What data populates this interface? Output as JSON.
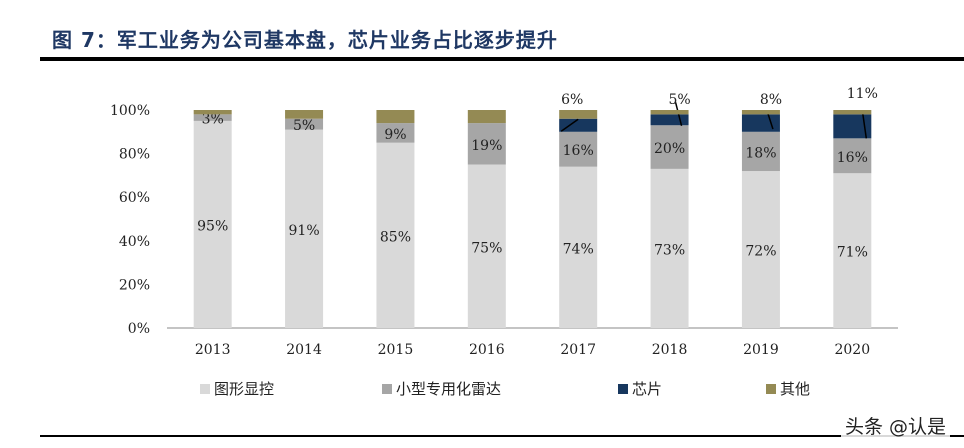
{
  "title": "图 7：军工业务为公司基本盘，芯片业务占比逐步提升",
  "watermark": "头条 @认是",
  "chart_data": {
    "type": "bar",
    "stacked": true,
    "categories": [
      "2013",
      "2014",
      "2015",
      "2016",
      "2017",
      "2018",
      "2019",
      "2020"
    ],
    "ylim": [
      0,
      100
    ],
    "yticks": [
      0,
      20,
      40,
      60,
      80,
      100
    ],
    "ytick_labels": [
      "0%",
      "20%",
      "40%",
      "60%",
      "80%",
      "100%"
    ],
    "legend_position": "bottom",
    "grid": false,
    "series": [
      {
        "name": "图形显控",
        "color": "#d9d9d9",
        "values": [
          95,
          91,
          85,
          75,
          74,
          73,
          72,
          71
        ],
        "labels": [
          "95%",
          "91%",
          "85%",
          "75%",
          "74%",
          "73%",
          "72%",
          "71%"
        ]
      },
      {
        "name": "小型专用化雷达",
        "color": "#a6a6a6",
        "values": [
          3,
          5,
          9,
          19,
          16,
          20,
          18,
          16
        ],
        "labels": [
          "3%",
          "5%",
          "9%",
          "19%",
          "16%",
          "20%",
          "18%",
          "16%"
        ]
      },
      {
        "name": "芯片",
        "color": "#17375e",
        "values": [
          0,
          0,
          0,
          0,
          6,
          5,
          8,
          11
        ],
        "labels": [
          "",
          "",
          "",
          "",
          "6%",
          "5%",
          "8%",
          "11%"
        ]
      },
      {
        "name": "其他",
        "color": "#948a54",
        "values": [
          2,
          4,
          6,
          6,
          4,
          2,
          2,
          2
        ],
        "labels": [
          "",
          "",
          "",
          "",
          "",
          "",
          "",
          ""
        ]
      }
    ]
  }
}
